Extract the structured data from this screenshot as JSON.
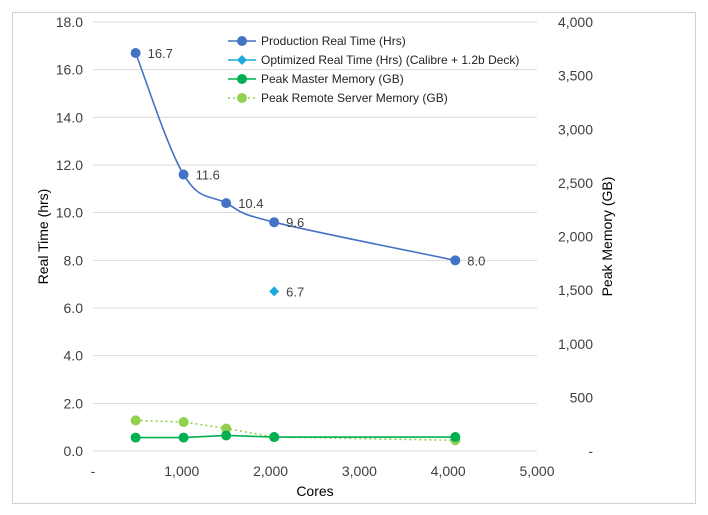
{
  "chart_data": {
    "type": "line",
    "xlabel": "Cores",
    "ylabel": "Real Time (hrs)",
    "y2label": "Peak Memory (GB)",
    "xlim": [
      0,
      5000
    ],
    "ylim": [
      0,
      18
    ],
    "y2lim": [
      0,
      4000
    ],
    "x_ticks": [
      0,
      1000,
      2000,
      3000,
      4000,
      5000
    ],
    "x_tick_labels": [
      "-",
      "1,000",
      "2,000",
      "3,000",
      "4,000",
      "5,000"
    ],
    "y_ticks": [
      0,
      2,
      4,
      6,
      8,
      10,
      12,
      14,
      16,
      18
    ],
    "y_tick_labels": [
      "0.0",
      "2.0",
      "4.0",
      "6.0",
      "8.0",
      "10.0",
      "12.0",
      "14.0",
      "16.0",
      "18.0"
    ],
    "y2_ticks": [
      0,
      500,
      1000,
      1500,
      2000,
      2500,
      3000,
      3500,
      4000
    ],
    "y2_tick_labels": [
      "-",
      "500",
      "1,000",
      "1,500",
      "2,000",
      "2,500",
      "3,000",
      "3,500",
      "4,000"
    ],
    "grid": "horizontal",
    "legend_position": "top-right",
    "series": [
      {
        "name": "Production Real Time (Hrs)",
        "axis": "left",
        "color": "#4472C4",
        "marker": "circle",
        "line": "smooth-solid",
        "x": [
          480,
          1020,
          1500,
          2040,
          4080
        ],
        "y": [
          16.7,
          11.6,
          10.4,
          9.6,
          8.0
        ],
        "labels": [
          "16.7",
          "11.6",
          "10.4",
          "9.6",
          "8.0"
        ]
      },
      {
        "name": "Optimized Real Time (Hrs) (Calibre + 1.2b Deck)",
        "axis": "left",
        "color": "#1FA8E0",
        "marker": "diamond",
        "line": "none",
        "x": [
          2040
        ],
        "y": [
          6.7
        ],
        "labels": [
          "6.7"
        ]
      },
      {
        "name": "Peak Master Memory (GB)",
        "axis": "right",
        "color": "#00B050",
        "marker": "circle",
        "line": "solid",
        "x": [
          480,
          1020,
          1500,
          2040,
          4080
        ],
        "y": [
          125,
          125,
          145,
          130,
          130
        ],
        "labels": []
      },
      {
        "name": "Peak Remote Server Memory (GB)",
        "axis": "right",
        "color": "#92D050",
        "marker": "circle",
        "line": "dotted",
        "x": [
          480,
          1020,
          1500,
          2040,
          4080
        ],
        "y": [
          285,
          270,
          210,
          130,
          100
        ],
        "labels": []
      }
    ]
  }
}
